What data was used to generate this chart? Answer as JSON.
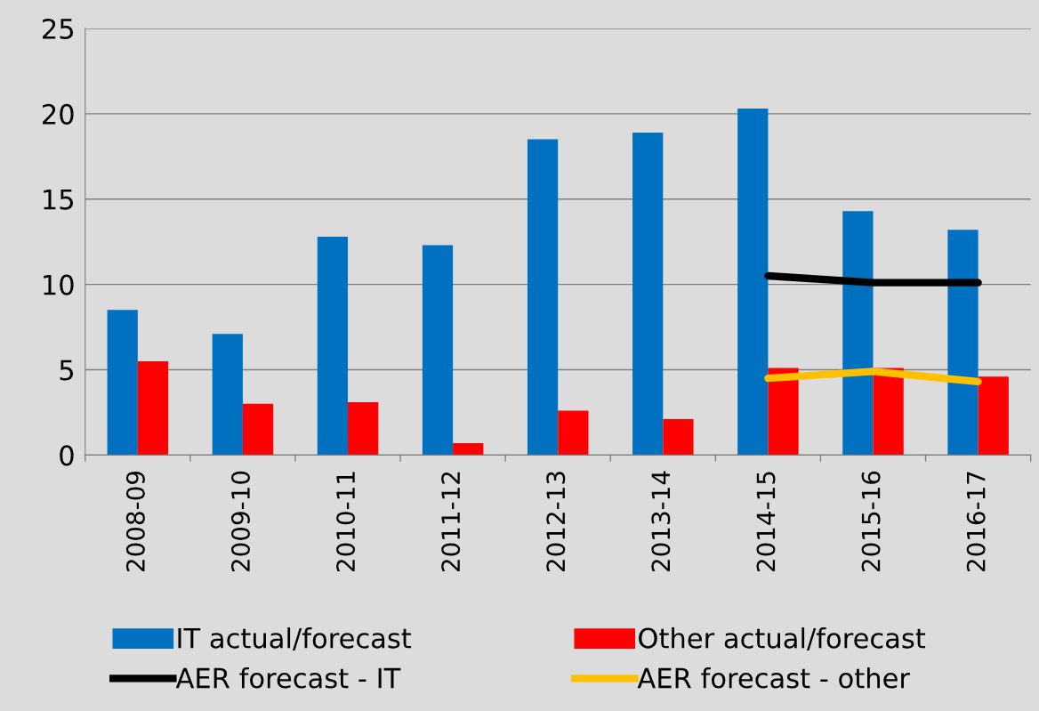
{
  "chart_data": {
    "type": "bar",
    "categories": [
      "2008-09",
      "2009-10",
      "2010-11",
      "2011-12",
      "2012-13",
      "2013-14",
      "2014-15",
      "2015-16",
      "2016-17"
    ],
    "series": [
      {
        "name": "IT actual/forecast",
        "color": "#0070c0",
        "values": [
          8.5,
          7.1,
          12.8,
          12.3,
          18.5,
          18.9,
          20.3,
          14.3,
          13.2
        ]
      },
      {
        "name": "Other actual/forecast",
        "color": "#ff0000",
        "values": [
          5.5,
          3.0,
          3.1,
          0.7,
          2.6,
          2.1,
          5.1,
          5.1,
          4.6
        ]
      },
      {
        "name": "AER forecast - IT",
        "type": "line",
        "color": "#000000",
        "values": [
          null,
          null,
          null,
          null,
          null,
          null,
          10.5,
          10.1,
          10.1
        ]
      },
      {
        "name": "AER forecast - other",
        "type": "line",
        "color": "#ffc000",
        "values": [
          null,
          null,
          null,
          null,
          null,
          null,
          4.5,
          4.9,
          4.3
        ]
      }
    ],
    "ylim": [
      0,
      25
    ],
    "yticks": [
      0,
      5,
      10,
      15,
      20,
      25
    ],
    "grid": "y",
    "legend": "bottom",
    "marker": "none",
    "line_style": "solid"
  }
}
